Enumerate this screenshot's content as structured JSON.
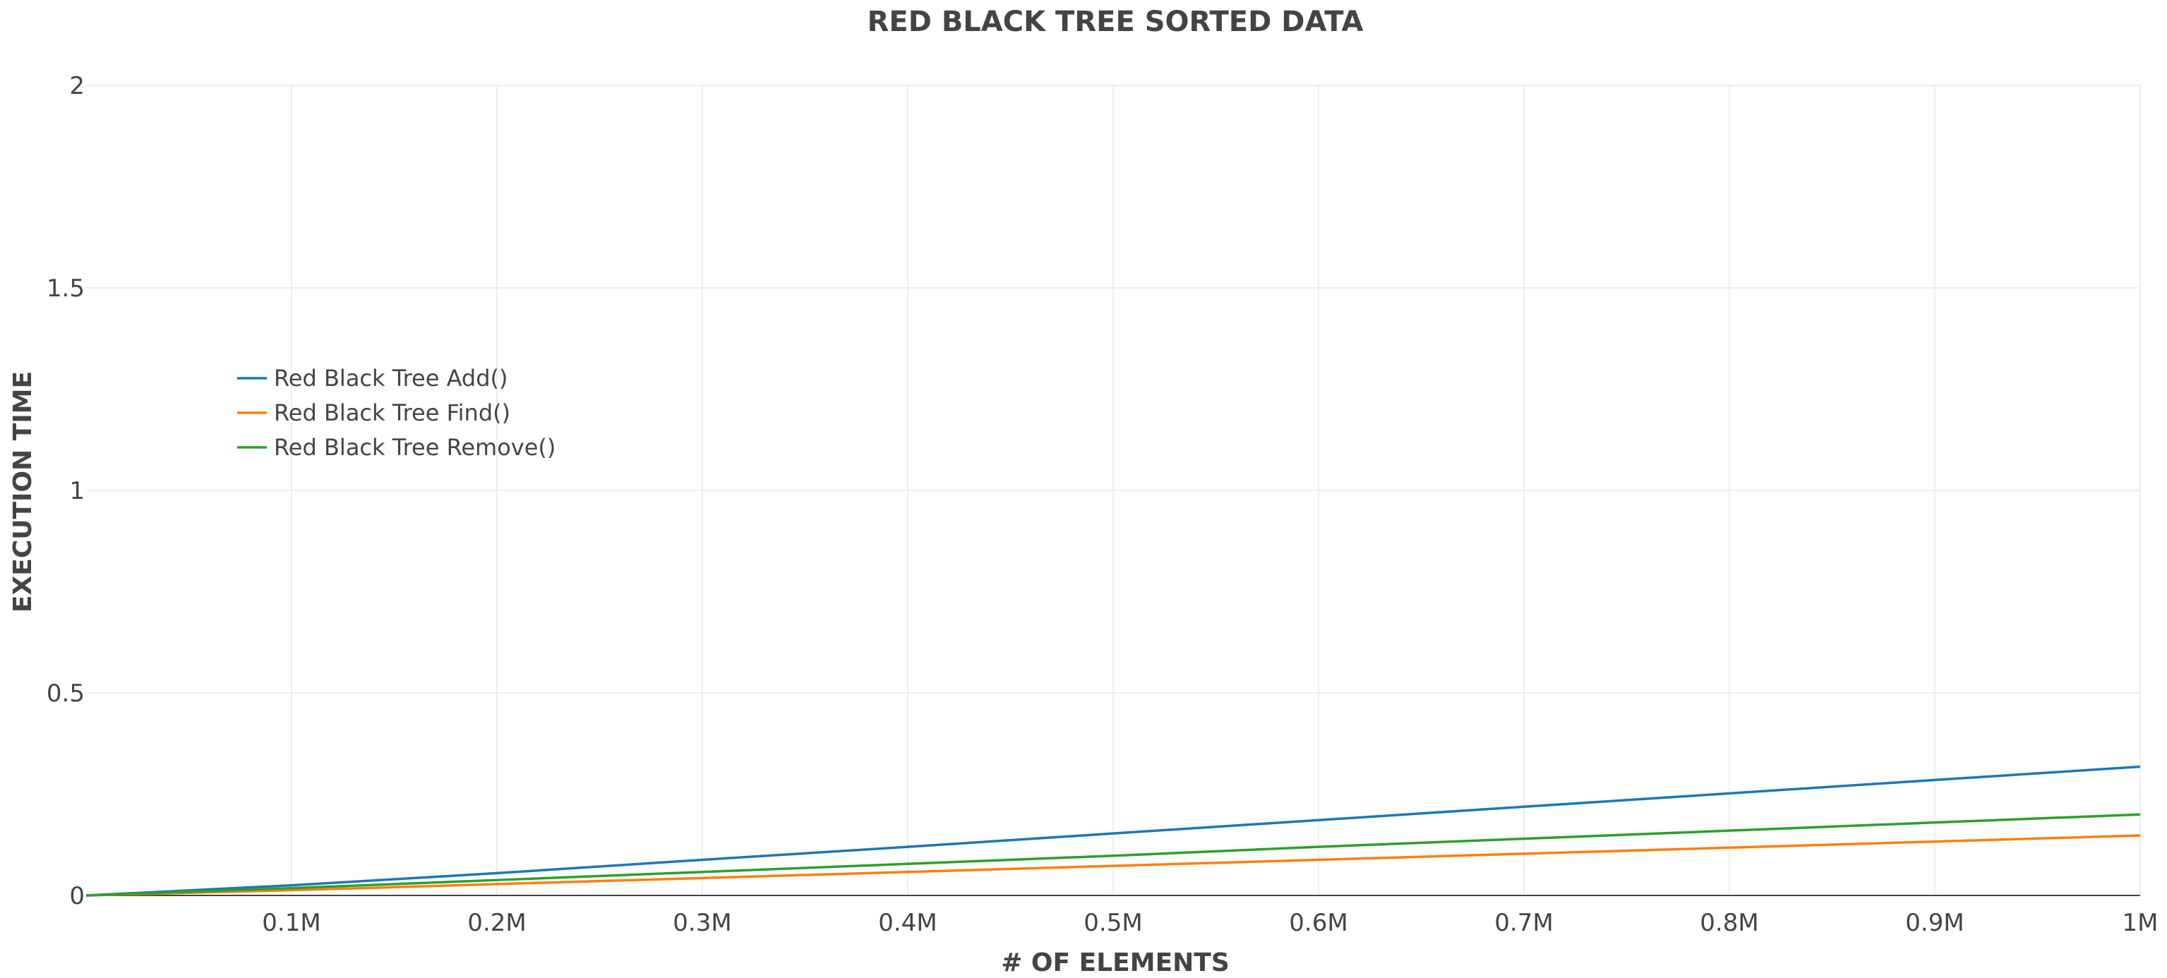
{
  "chart_data": {
    "type": "line",
    "title": "RED BLACK TREE SORTED DATA",
    "xlabel": "# OF ELEMENTS",
    "ylabel": "EXECUTION TIME",
    "xlim": [
      0,
      1000000
    ],
    "ylim": [
      0,
      2
    ],
    "x_ticks": [
      {
        "value": 100000,
        "label": "0.1M"
      },
      {
        "value": 200000,
        "label": "0.2M"
      },
      {
        "value": 300000,
        "label": "0.3M"
      },
      {
        "value": 400000,
        "label": "0.4M"
      },
      {
        "value": 500000,
        "label": "0.5M"
      },
      {
        "value": 600000,
        "label": "0.6M"
      },
      {
        "value": 700000,
        "label": "0.7M"
      },
      {
        "value": 800000,
        "label": "0.8M"
      },
      {
        "value": 900000,
        "label": "0.9M"
      },
      {
        "value": 1000000,
        "label": "1M"
      }
    ],
    "y_ticks": [
      {
        "value": 0,
        "label": "0"
      },
      {
        "value": 0.5,
        "label": "0.5"
      },
      {
        "value": 1,
        "label": "1"
      },
      {
        "value": 1.5,
        "label": "1.5"
      },
      {
        "value": 2,
        "label": "2"
      }
    ],
    "grid": true,
    "legend_position": "top-left",
    "x": [
      0,
      100000,
      200000,
      300000,
      400000,
      500000,
      600000,
      700000,
      800000,
      900000,
      1000000
    ],
    "series": [
      {
        "name": "Red Black Tree Add()",
        "color": "#1f77b4",
        "values": [
          0,
          0.025,
          0.055,
          0.088,
          0.12,
          0.153,
          0.186,
          0.219,
          0.252,
          0.285,
          0.318
        ]
      },
      {
        "name": "Red Black Tree Find()",
        "color": "#ff7f0e",
        "values": [
          0,
          0.013,
          0.028,
          0.043,
          0.058,
          0.073,
          0.088,
          0.103,
          0.118,
          0.133,
          0.148
        ]
      },
      {
        "name": "Red Black Tree Remove()",
        "color": "#2ca02c",
        "values": [
          0,
          0.018,
          0.038,
          0.058,
          0.078,
          0.098,
          0.12,
          0.14,
          0.16,
          0.18,
          0.2
        ]
      }
    ]
  }
}
